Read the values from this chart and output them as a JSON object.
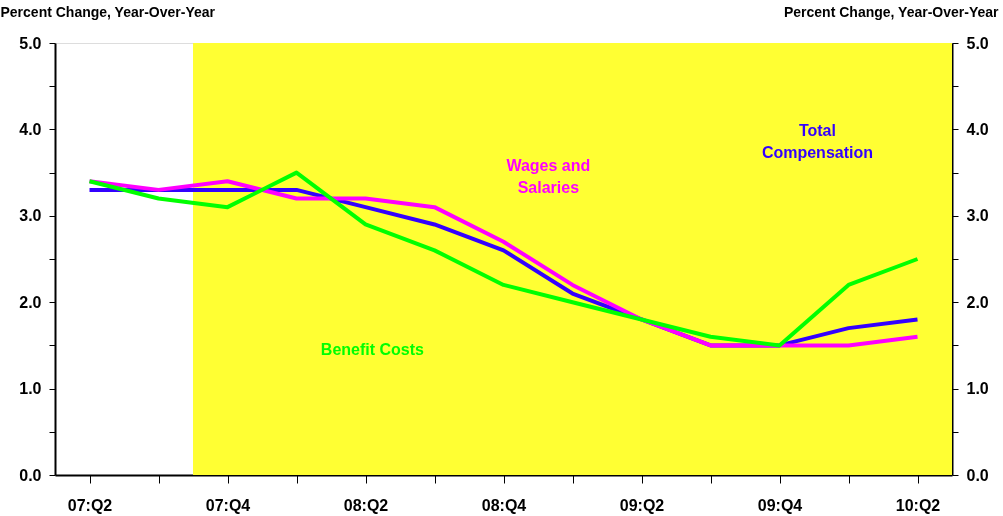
{
  "chart_data": {
    "type": "line",
    "ylabel": "Percent Change, Year-Over-Year",
    "y2label": "Percent Change, Year-Over-Year",
    "categories": [
      "07:Q2",
      null,
      "07:Q4",
      null,
      "08:Q2",
      null,
      "08:Q4",
      null,
      "09:Q2",
      null,
      "09:Q4",
      null,
      "10:Q2"
    ],
    "series": [
      {
        "name": "Total\nCompensation",
        "color": "#3300ff",
        "values": [
          3.3,
          3.3,
          3.3,
          3.3,
          3.1,
          2.9,
          2.6,
          2.1,
          1.8,
          1.5,
          1.5,
          1.7,
          1.8
        ]
      },
      {
        "name": "Wages and\nSalaries",
        "color": "#ff00ff",
        "values": [
          3.4,
          3.3,
          3.4,
          3.2,
          3.2,
          3.1,
          2.7,
          2.2,
          1.8,
          1.5,
          1.5,
          1.5,
          1.6
        ]
      },
      {
        "name": "Benefit Costs",
        "color": "#00ff00",
        "values": [
          3.4,
          3.2,
          3.1,
          3.5,
          2.9,
          2.6,
          2.2,
          2.0,
          1.8,
          1.6,
          1.5,
          2.2,
          2.5
        ]
      }
    ],
    "ylim": [
      0,
      5
    ],
    "yticks": [
      {
        "value": 0,
        "label": "0.0"
      },
      {
        "value": 0.5,
        "label": null
      },
      {
        "value": 1,
        "label": "1.0"
      },
      {
        "value": 1.5,
        "label": null
      },
      {
        "value": 2,
        "label": "2.0"
      },
      {
        "value": 2.5,
        "label": null
      },
      {
        "value": 3,
        "label": "3.0"
      },
      {
        "value": 3.5,
        "label": null
      },
      {
        "value": 4,
        "label": "4.0"
      },
      {
        "value": 4.5,
        "label": null
      },
      {
        "value": 5,
        "label": "5.0"
      }
    ],
    "y2lim": [
      0,
      5
    ],
    "y2ticks": [
      {
        "value": 0,
        "label": "0.0"
      },
      {
        "value": 0.5,
        "label": null
      },
      {
        "value": 1,
        "label": "1.0"
      },
      {
        "value": 1.5,
        "label": null
      },
      {
        "value": 2,
        "label": "2.0"
      },
      {
        "value": 2.5,
        "label": null
      },
      {
        "value": 3,
        "label": "3.0"
      },
      {
        "value": 3.5,
        "label": null
      },
      {
        "value": 4,
        "label": "4.0"
      },
      {
        "value": 4.5,
        "label": null
      },
      {
        "value": 5,
        "label": "5.0"
      }
    ],
    "bands": [
      {
        "axis": "x",
        "from": "07:Q4",
        "to": "10:Q2",
        "color": "#ffff33"
      }
    ],
    "grid": false,
    "marker": "none",
    "line_style": "solid"
  }
}
